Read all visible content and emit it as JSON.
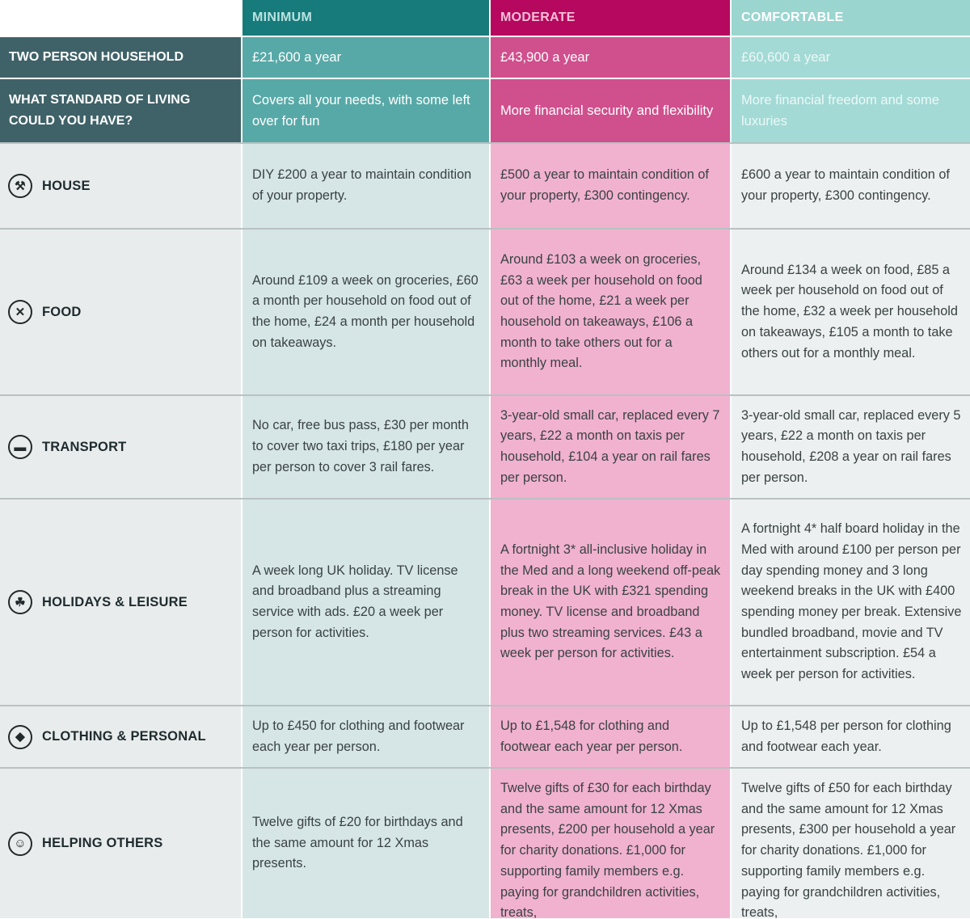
{
  "columns": {
    "minimum": "MINIMUM",
    "moderate": "MODERATE",
    "comfortable": "COMFORTABLE"
  },
  "household": {
    "label": "TWO PERSON HOUSEHOLD",
    "minimum": "£21,600 a year",
    "moderate": "£43,900 a year",
    "comfortable": "£60,600 a year"
  },
  "standard": {
    "label": "WHAT STANDARD OF LIVING COULD YOU HAVE?",
    "minimum": "Covers all your needs, with some left over for fun",
    "moderate": "More financial security and flexibility",
    "comfortable": "More financial freedom and some luxuries"
  },
  "rows": {
    "house": {
      "label": "HOUSE",
      "icon": "tools-icon",
      "minimum": "DIY £200 a year to maintain condition of your property.",
      "moderate": "£500 a year to maintain condition of your property, £300 contingency.",
      "comfortable": "£600 a year to maintain condition of your property, £300 contingency."
    },
    "food": {
      "label": "FOOD",
      "icon": "cutlery-icon",
      "minimum": "Around £109 a week on groceries, £60 a month per household on food out of the home, £24 a month per household on takeaways.",
      "moderate": "Around £103 a week on groceries, £63 a week per household on food out of the home, £21 a week per household on takeaways, £106 a month to take others out for a monthly meal.",
      "comfortable": "Around £134 a week on food, £85 a week per household on food out of the home, £32 a week per household on takeaways, £105 a month to take others out for a monthly meal."
    },
    "transport": {
      "label": "TRANSPORT",
      "icon": "car-icon",
      "minimum": "No car, free bus pass, £30 per month to cover two taxi trips, £180 per year per person to cover 3 rail fares.",
      "moderate": "3-year-old small car, replaced every 7 years, £22 a month on taxis per household, £104 a year on rail fares per person.",
      "comfortable": "3-year-old small car, replaced every 5 years, £22 a month on taxis per household, £208 a year on rail fares per person."
    },
    "holidays": {
      "label": "HOLIDAYS & LEISURE",
      "icon": "palm-tree-icon",
      "minimum": "A week long UK holiday. TV license and broadband plus a streaming service with ads. £20 a week per person for activities.",
      "moderate": "A fortnight 3* all-inclusive holiday in the Med and a long weekend off-peak break in the UK with £321 spending money. TV license and broadband plus two streaming services. £43 a week per person for activities.",
      "comfortable": "A fortnight 4* half board holiday in the Med with around £100 per person per day spending money and 3 long weekend breaks in the UK with £400 spending money per break. Extensive bundled broadband, movie and TV entertainment subscription. £54 a week per person for activities."
    },
    "clothing": {
      "label": "CLOTHING & PERSONAL",
      "icon": "shirt-icon",
      "minimum": "Up to £450 for clothing and footwear each year per person.",
      "moderate": "Up to £1,548 for clothing and footwear each year per person.",
      "comfortable": "Up to £1,548 per person for clothing and footwear each year."
    },
    "helping": {
      "label": "HELPING OTHERS",
      "icon": "helping-hand-icon",
      "minimum": "Twelve gifts of £20 for birthdays and the same amount for 12 Xmas presents.",
      "moderate": "Twelve gifts of £30 for each birthday and the same amount for 12 Xmas presents, £200 per household a year for charity donations. £1,000 for supporting family members e.g. paying for grandchildren activities, treats,",
      "comfortable": "Twelve gifts of £50 for each birthday and the same amount for 12 Xmas presents, £300 per household a year for charity donations. £1,000 for supporting family members e.g. paying for grandchildren activities, treats,"
    }
  }
}
